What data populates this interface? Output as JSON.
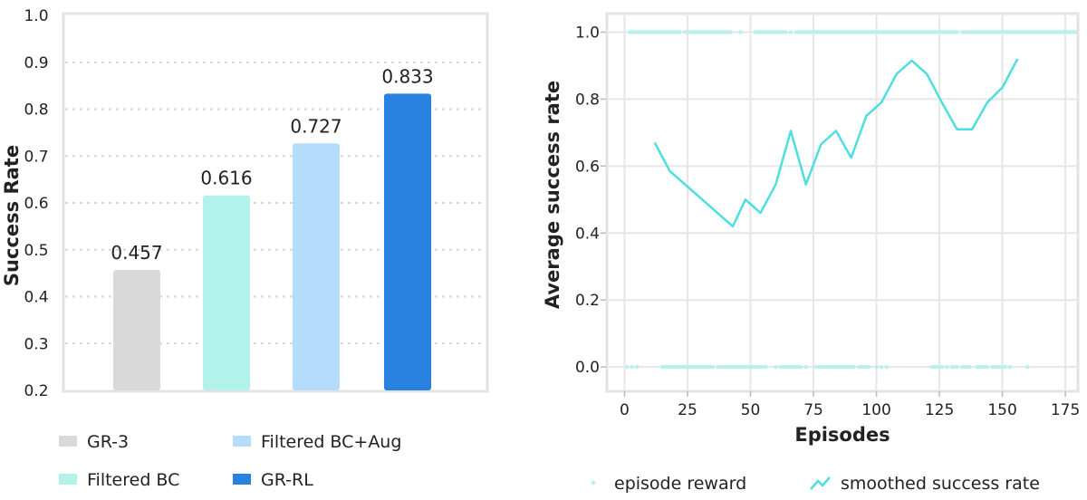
{
  "chart_data": [
    {
      "type": "bar",
      "ylabel": "Success Rate",
      "ylim": [
        0.2,
        1.0
      ],
      "yticks": [
        "0.2",
        "0.3",
        "0.4",
        "0.5",
        "0.6",
        "0.7",
        "0.8",
        "0.9",
        "1.0"
      ],
      "grid": "dotted horizontal",
      "legend_position": "bottom",
      "bars": [
        {
          "name": "GR-3",
          "value": 0.457,
          "label": "0.457",
          "color": "#d9d9d9"
        },
        {
          "name": "Filtered BC",
          "value": 0.616,
          "label": "0.616",
          "color": "#b2f2ea"
        },
        {
          "name": "Filtered BC+Aug",
          "value": 0.727,
          "label": "0.727",
          "color": "#b6dcfc"
        },
        {
          "name": "GR-RL",
          "value": 0.833,
          "label": "0.833",
          "color": "#2a82e0"
        }
      ]
    },
    {
      "type": "line",
      "xlabel": "Episodes",
      "ylabel": "Average success rate",
      "xlim": [
        -7,
        180
      ],
      "ylim": [
        -0.07,
        1.05
      ],
      "xticks": [
        "0",
        "25",
        "50",
        "75",
        "100",
        "125",
        "150",
        "175"
      ],
      "yticks": [
        "0.0",
        "0.2",
        "0.4",
        "0.6",
        "0.8",
        "1.0"
      ],
      "grid": "on",
      "legend_position": "bottom",
      "color": "#4fdede",
      "series": [
        {
          "name": "smoothed success rate",
          "x": [
            12,
            18,
            43,
            48,
            54,
            60,
            66,
            72,
            78,
            84,
            90,
            96,
            102,
            108,
            114,
            120,
            126,
            132,
            138,
            144,
            150,
            156
          ],
          "y": [
            0.67,
            0.585,
            0.42,
            0.5,
            0.46,
            0.545,
            0.705,
            0.545,
            0.665,
            0.705,
            0.625,
            0.75,
            0.79,
            0.875,
            0.915,
            0.875,
            0.79,
            0.71,
            0.71,
            0.79,
            0.835,
            0.92
          ]
        },
        {
          "name": "episode reward",
          "success_episodes": [
            2,
            3,
            4,
            5,
            6,
            7,
            8,
            9,
            10,
            11,
            12,
            13,
            14,
            15,
            16,
            17,
            18,
            19,
            20,
            21,
            22,
            24,
            25,
            26,
            27,
            28,
            29,
            30,
            31,
            32,
            33,
            34,
            35,
            36,
            37,
            38,
            39,
            40,
            41,
            42,
            46,
            52,
            53,
            54,
            55,
            56,
            57,
            58,
            59,
            60,
            61,
            62,
            63,
            64,
            66,
            68,
            69,
            70,
            71,
            72,
            73,
            74,
            75,
            76,
            77,
            78,
            79,
            80,
            81,
            82,
            83,
            84,
            85,
            86,
            87,
            88,
            89,
            90,
            91,
            92,
            93,
            94,
            95,
            96,
            97,
            98,
            99,
            100,
            101,
            102,
            103,
            104,
            105,
            106,
            107,
            108,
            109,
            110,
            111,
            112,
            113,
            114,
            115,
            116,
            117,
            118,
            119,
            120,
            121,
            122,
            123,
            124,
            125,
            126,
            127,
            128,
            129,
            130,
            131,
            132,
            134,
            135,
            136,
            137,
            138,
            139,
            140,
            141,
            142,
            143,
            144,
            145,
            146,
            147,
            148,
            149,
            150,
            151,
            152,
            153,
            154,
            155,
            156,
            157,
            158,
            159,
            160,
            161,
            162,
            163,
            164,
            165,
            166,
            167,
            168,
            169,
            170,
            171,
            172,
            173,
            174,
            175,
            176,
            177,
            178,
            179
          ],
          "failure_episodes": [
            1,
            3,
            5,
            15,
            16,
            17,
            18,
            19,
            20,
            21,
            22,
            23,
            24,
            25,
            26,
            27,
            28,
            29,
            30,
            31,
            32,
            33,
            34,
            35,
            37,
            38,
            39,
            40,
            41,
            42,
            43,
            44,
            45,
            46,
            47,
            48,
            49,
            50,
            51,
            52,
            53,
            54,
            55,
            56,
            60,
            62,
            63,
            64,
            65,
            66,
            67,
            68,
            69,
            70,
            72,
            76,
            77,
            78,
            79,
            80,
            81,
            82,
            83,
            84,
            85,
            86,
            87,
            88,
            89,
            90,
            91,
            93,
            94,
            95,
            96,
            97,
            100,
            102,
            104,
            122,
            123,
            124,
            125,
            126,
            128,
            130,
            131,
            132,
            134,
            135,
            136,
            137,
            140,
            141,
            142,
            143,
            144,
            146,
            147,
            148,
            149,
            150,
            151,
            153,
            160
          ]
        }
      ]
    }
  ]
}
